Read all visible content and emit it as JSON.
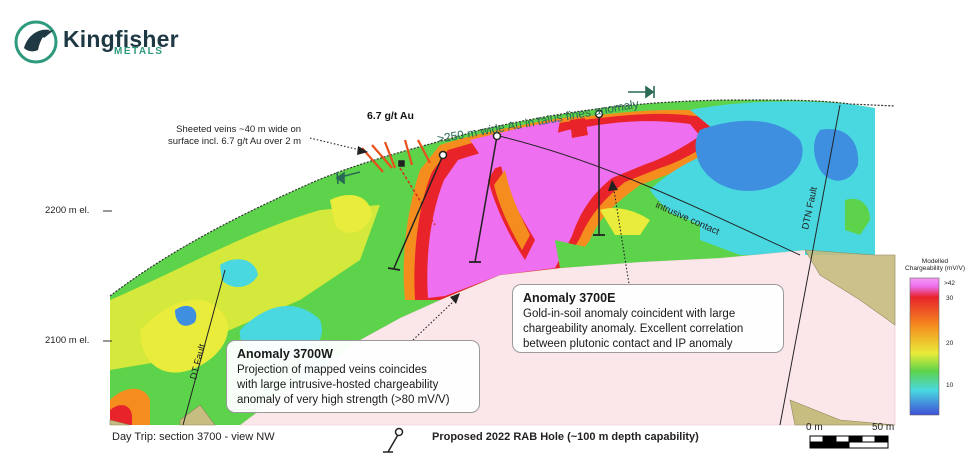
{
  "brand": {
    "name": "Kingfisher",
    "sub": "METALS"
  },
  "annotations": {
    "sheeted_veins": [
      "Sheeted veins ~40 m wide on",
      "surface incl. 6.7 g/t Au over 2 m"
    ],
    "grade": "6.7 g/t Au",
    "talus_anomaly": ">250 m wide Au in talus fines anomaly",
    "intrusive_contact": "intrusive contact",
    "dtn_fault": "DTN Fault",
    "dt_fault": "DT Fault"
  },
  "elevations": [
    "2200 m el.",
    "2100 m el."
  ],
  "callouts": [
    {
      "title": "Anomaly 3700W",
      "lines": [
        "Projection of mapped veins coincides",
        "with large intrusive-hosted chargeability",
        "anomaly of very high strength (>80 mV/V)"
      ]
    },
    {
      "title": "Anomaly 3700E",
      "lines": [
        "Gold-in-soil anomaly coincident with large",
        "chargeability anomaly. Excellent correlation",
        "between plutonic contact and IP anomaly"
      ]
    }
  ],
  "legend": {
    "title": [
      "Modelled",
      "Chargeability (mV/V)"
    ],
    "ticks": [
      ">42",
      "30",
      "20",
      "10"
    ]
  },
  "footer": {
    "section": "Day Trip: section 3700 - view NW",
    "hole_label": "Proposed 2022 RAB Hole (~100 m depth capability)",
    "scale_labels": [
      "0 m",
      "50 m"
    ]
  },
  "colors": {
    "high": "#ee6ff0",
    "red": "#e8232a",
    "orange": "#f58d1e",
    "yellow": "#e9ec3a",
    "green": "#5cd34a",
    "cyan": "#49d8e0",
    "blue": "#3f8fe0",
    "teal_brand": "#2e9a7d",
    "terrain": "#c7bd80",
    "below": "#fbe7ea"
  }
}
